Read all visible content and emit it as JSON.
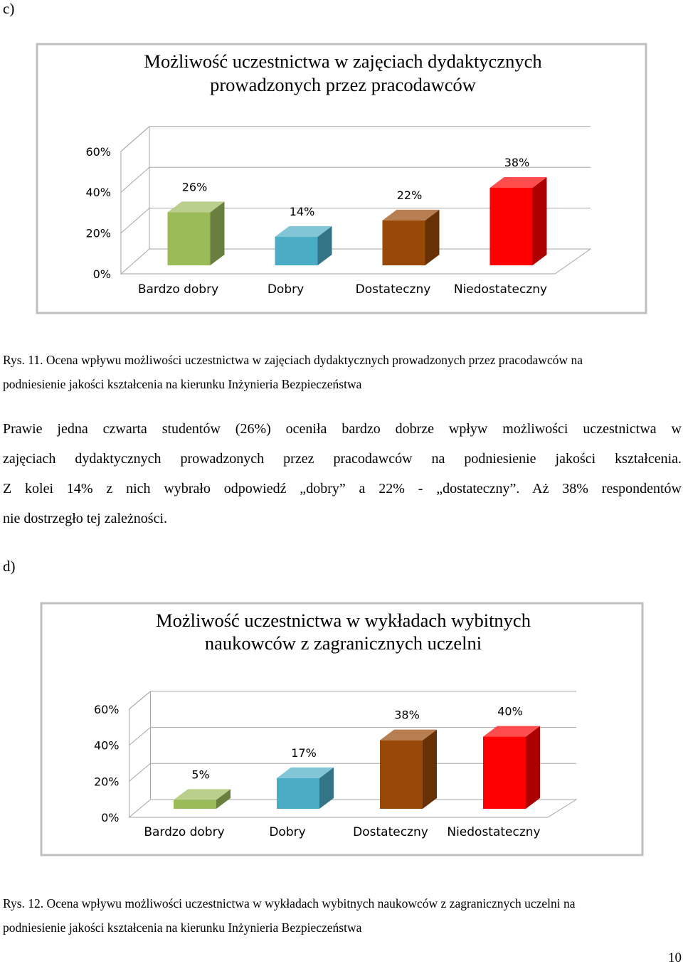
{
  "document": {
    "label_c": "c)",
    "caption_1": [
      "Rys. 11. Ocena wpływu możliwości uczestnictwa w zajęciach dydaktycznych prowadzonych przez pracodawców na",
      "podniesienie jakości kształcenia na kierunku Inżynieria Bezpieczeństwa"
    ],
    "paragraph": [
      "Prawie jedna czwarta studentów (26%) oceniła bardzo dobrze wpływ możliwości uczestnictwa w",
      "zajęciach dydaktycznych prowadzonych przez pracodawców na podniesienie jakości kształcenia.",
      "Z kolei 14% z nich wybrało odpowiedź „dobry” a 22% - „dostateczny”. Aż 38% respondentów",
      "nie dostrzegło tej zależności."
    ],
    "label_d": "d)",
    "caption_2": [
      "Rys. 12. Ocena wpływu możliwości uczestnictwa w wykładach wybitnych naukowców z zagranicznych uczelni na",
      "podniesienie jakości kształcenia na kierunku Inżynieria Bezpieczeństwa"
    ],
    "page_number": "10"
  },
  "chart_data": [
    {
      "type": "bar3d",
      "title": [
        "Możliwość uczestnictwa w zajęciach dydaktycznych",
        "prowadzonych przez pracodawców"
      ],
      "categories": [
        "Bardzo dobry",
        "Dobry",
        "Dostateczny",
        "Niedostateczny"
      ],
      "values": [
        26,
        14,
        22,
        38
      ],
      "value_labels": [
        "26%",
        "14%",
        "22%",
        "38%"
      ],
      "colors": [
        "#9bbb59",
        "#4bacc6",
        "#984807",
        "#ff0000"
      ],
      "ylim": [
        0,
        60
      ],
      "yticks": [
        {
          "value": 0,
          "label": "0%"
        },
        {
          "value": 20,
          "label": "20%"
        },
        {
          "value": 40,
          "label": "40%"
        },
        {
          "value": 60,
          "label": "60%"
        }
      ],
      "grid": true
    },
    {
      "type": "bar3d",
      "title": [
        "Możliwość uczestnictwa w wykładach wybitnych",
        "naukowców z zagranicznych uczelni"
      ],
      "categories": [
        "Bardzo dobry",
        "Dobry",
        "Dostateczny",
        "Niedostateczny"
      ],
      "values": [
        5,
        17,
        38,
        40
      ],
      "value_labels": [
        "5%",
        "17%",
        "38%",
        "40%"
      ],
      "colors": [
        "#9bbb59",
        "#4bacc6",
        "#984807",
        "#ff0000"
      ],
      "ylim": [
        0,
        60
      ],
      "yticks": [
        {
          "value": 0,
          "label": "0%"
        },
        {
          "value": 20,
          "label": "20%"
        },
        {
          "value": 40,
          "label": "40%"
        },
        {
          "value": 60,
          "label": "60%"
        }
      ],
      "grid": true
    }
  ]
}
